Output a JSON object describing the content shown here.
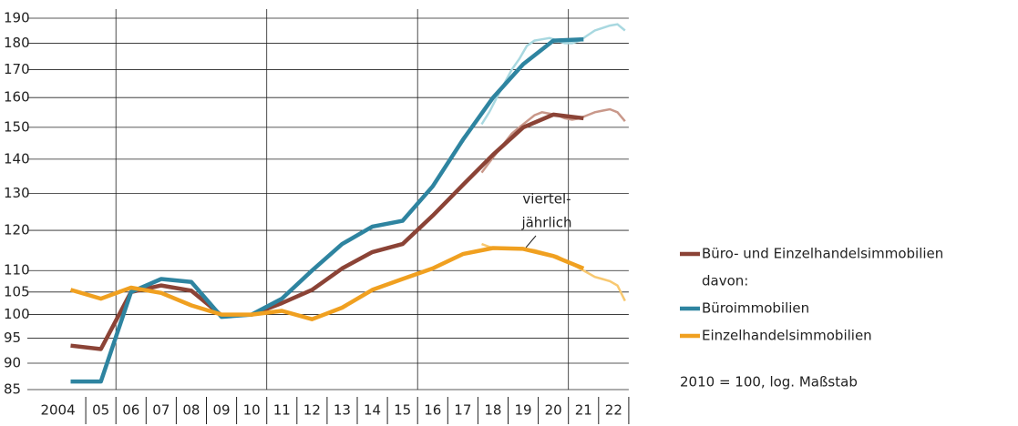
{
  "chart_data": {
    "type": "line",
    "log_scale": true,
    "grid": true,
    "legend_position": "right",
    "categories": [
      "2004",
      "05",
      "06",
      "07",
      "08",
      "09",
      "10",
      "11",
      "12",
      "13",
      "14",
      "15",
      "16",
      "17",
      "18",
      "19",
      "20",
      "21",
      "22"
    ],
    "ylim": [
      85,
      190
    ],
    "yticks": [
      85,
      90,
      95,
      100,
      105,
      110,
      120,
      130,
      140,
      150,
      160,
      170,
      180,
      190
    ],
    "series": [
      {
        "name": "Büro- und Einzelhandelsimmobilien",
        "color": "#8b4336",
        "values": [
          93.5,
          92.8,
          105,
          106.5,
          105.3,
          99.8,
          100,
          102.5,
          105.5,
          110.5,
          114.5,
          116.5,
          123.9,
          132.4,
          141.4,
          150,
          154.2,
          153,
          null
        ]
      },
      {
        "name": "Büroimmobilien",
        "color": "#2e84a0",
        "values": [
          86.5,
          86.5,
          105,
          108,
          107.3,
          99.5,
          100,
          103.5,
          110,
          116.5,
          121,
          122.5,
          132,
          146,
          160,
          172,
          181,
          181.5,
          null
        ]
      },
      {
        "name": "Einzelhandelsimmobilien",
        "color": "#f0a020",
        "values": [
          105.5,
          103.5,
          106,
          104.8,
          102,
          100,
          100,
          100.8,
          99,
          101.5,
          105.5,
          108,
          110.5,
          114,
          115.5,
          115.3,
          113.5,
          110.5,
          null
        ]
      }
    ],
    "quarterly_series": [
      {
        "color": "#c9988a",
        "x": [
          2018.125,
          2018.375,
          2018.625,
          2018.875,
          2019.125,
          2019.375,
          2019.625,
          2019.875,
          2020.125,
          2020.375,
          2020.625,
          2020.875,
          2021.125,
          2021.375,
          2021.625,
          2021.875,
          2022.125,
          2022.375,
          2022.625,
          2022.875
        ],
        "values": [
          136,
          139,
          142,
          145,
          148,
          150,
          152,
          154,
          155,
          154.5,
          154,
          153,
          152.5,
          153,
          154,
          155,
          155.5,
          156,
          155,
          152
        ]
      },
      {
        "color": "#a8d8e0",
        "x": [
          2018.125,
          2018.375,
          2018.625,
          2018.875,
          2019.125,
          2019.375,
          2019.625,
          2019.875,
          2020.125,
          2020.375,
          2020.625,
          2020.875,
          2021.125,
          2021.375,
          2021.625,
          2021.875,
          2022.125,
          2022.375,
          2022.625,
          2022.875
        ],
        "values": [
          151,
          155,
          160,
          165,
          170,
          174,
          179,
          181,
          181.5,
          182,
          181,
          180,
          180,
          181,
          183,
          185,
          186,
          187,
          187.5,
          185
        ]
      },
      {
        "color": "#f8c870",
        "x": [
          2018.125,
          2018.375,
          2018.625,
          2018.875,
          2019.125,
          2019.375,
          2019.625,
          2019.875,
          2020.125,
          2020.375,
          2020.625,
          2020.875,
          2021.125,
          2021.375,
          2021.625,
          2021.875,
          2022.125,
          2022.375,
          2022.625,
          2022.875
        ],
        "values": [
          116.5,
          115.8,
          115.5,
          115.5,
          115.4,
          115.3,
          115.2,
          115,
          114.5,
          114,
          113.5,
          112.5,
          111.5,
          110.5,
          109.5,
          108.5,
          108,
          107.5,
          106.5,
          103
        ]
      }
    ],
    "annotation": [
      "viertel-",
      "jährlich"
    ],
    "legend_subheading": "davon:",
    "note": "2010 = 100, log. Maßstab"
  }
}
